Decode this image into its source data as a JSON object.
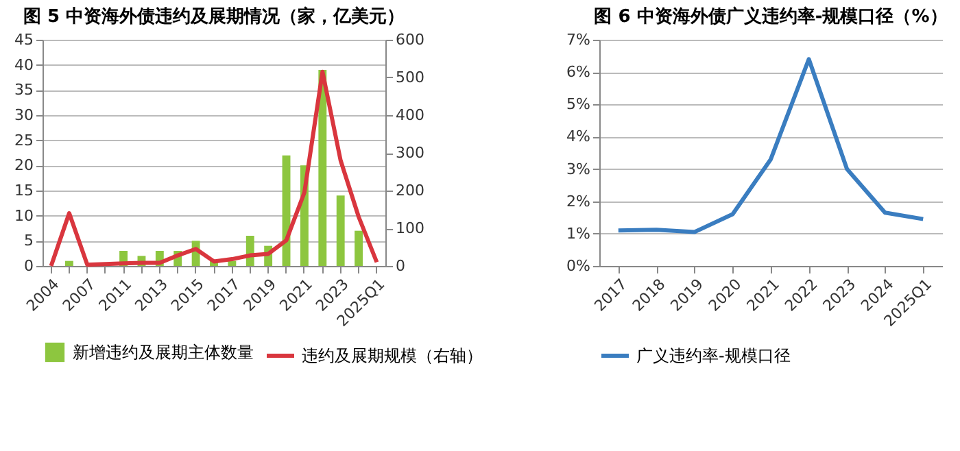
{
  "chart_data": [
    {
      "type": "bar",
      "title": "图 5  中资海外债违约及展期情况（家，亿美元）",
      "categories": [
        "2004",
        null,
        "2007",
        null,
        "2011",
        null,
        "2013",
        null,
        "2015",
        null,
        "2017",
        null,
        "2019",
        null,
        "2021",
        null,
        "2023",
        null,
        "2025Q1"
      ],
      "series": [
        {
          "name": "新增违约及展期主体数量",
          "color": "#8dc63f",
          "values": [
            0,
            1,
            0,
            null,
            3,
            2,
            3,
            3,
            5,
            1,
            1,
            6,
            4,
            22,
            20,
            39,
            14,
            7,
            0
          ]
        },
        {
          "name": "违约及展期规模（右轴）",
          "type": "line",
          "axis": "y2",
          "color": "#d9363e",
          "values": [
            0,
            140,
            3,
            5,
            7,
            8,
            8,
            28,
            45,
            12,
            18,
            28,
            32,
            68,
            195,
            515,
            280,
            130,
            10
          ]
        }
      ],
      "ylim": [
        0,
        45
      ],
      "yticks": [
        0,
        5,
        10,
        15,
        20,
        25,
        30,
        35,
        40,
        45
      ],
      "y2lim": [
        0,
        600
      ],
      "y2ticks": [
        0,
        100,
        200,
        300,
        400,
        500,
        600
      ],
      "grid": "y",
      "legend": "bottom"
    },
    {
      "type": "line",
      "title": "图 6  中资海外债广义违约率-规模口径（%）",
      "categories": [
        "2017",
        "2018",
        "2019",
        "2020",
        "2021",
        "2022",
        "2023",
        "2024",
        "2025Q1"
      ],
      "series": [
        {
          "name": "广义违约率-规模口径",
          "color": "#3a7dc0",
          "values": [
            1.1,
            1.12,
            1.05,
            1.6,
            3.3,
            6.4,
            3.0,
            1.65,
            1.45
          ]
        }
      ],
      "ylim": [
        0,
        7
      ],
      "yticks": [
        {
          "value": 0,
          "label": "0%"
        },
        {
          "value": 1,
          "label": "1%"
        },
        {
          "value": 2,
          "label": "2%"
        },
        {
          "value": 3,
          "label": "3%"
        },
        {
          "value": 4,
          "label": "4%"
        },
        {
          "value": 5,
          "label": "5%"
        },
        {
          "value": 6,
          "label": "6%"
        },
        {
          "value": 7,
          "label": "7%"
        }
      ],
      "grid": "y",
      "legend": "bottom"
    }
  ]
}
